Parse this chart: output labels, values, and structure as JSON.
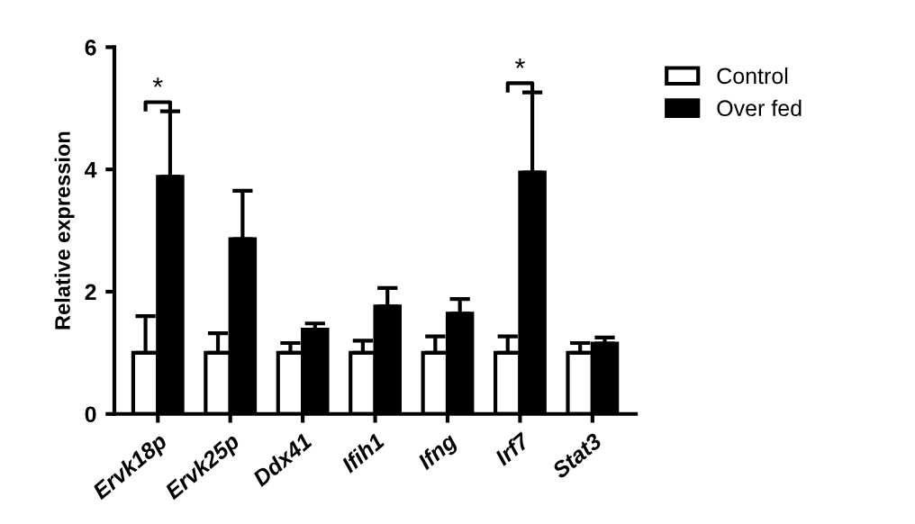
{
  "chart_data": {
    "type": "bar",
    "ylabel": "Relative expression",
    "categories": [
      "Ervk18p",
      "Ervk25p",
      "Ddx41",
      "Ifih1",
      "Ifng",
      "Irf7",
      "Stat3"
    ],
    "series": [
      {
        "name": "Control",
        "color": "#ffffff",
        "values": [
          1.0,
          1.0,
          1.0,
          1.0,
          1.0,
          1.0,
          1.0
        ],
        "errors": [
          [
            1.0,
            1.6
          ],
          [
            1.0,
            1.32
          ],
          [
            1.0,
            1.16
          ],
          [
            1.0,
            1.2
          ],
          [
            1.0,
            1.27
          ],
          [
            1.0,
            1.27
          ],
          [
            1.0,
            1.16
          ]
        ]
      },
      {
        "name": "Over fed",
        "color": "#000000",
        "values": [
          3.88,
          2.86,
          1.38,
          1.76,
          1.64,
          3.95,
          1.15
        ],
        "errors": [
          [
            3.88,
            4.95
          ],
          [
            2.86,
            3.65
          ],
          [
            1.38,
            1.48
          ],
          [
            1.76,
            2.06
          ],
          [
            1.64,
            1.88
          ],
          [
            3.95,
            5.26
          ],
          [
            1.15,
            1.25
          ]
        ]
      }
    ],
    "ylim": [
      0,
      6
    ],
    "yticks": [
      0,
      2,
      4,
      6
    ],
    "grid": false,
    "legend": "top right",
    "annotations": [
      "*",
      "*"
    ]
  }
}
